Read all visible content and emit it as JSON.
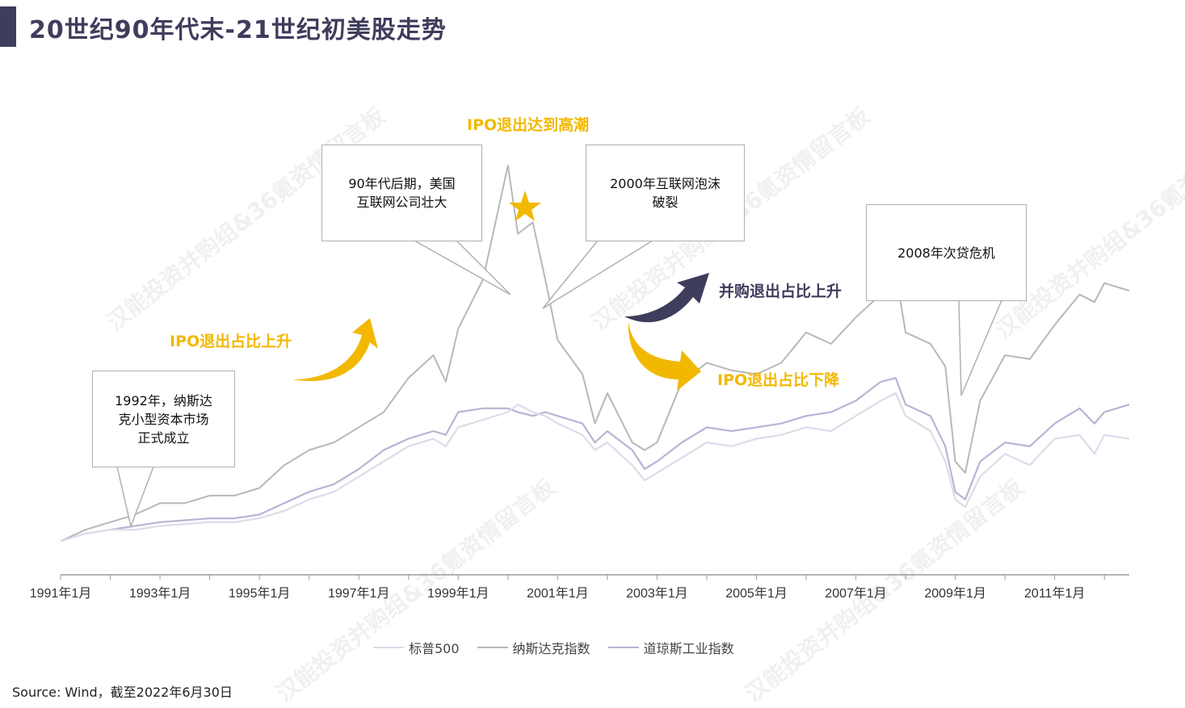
{
  "page": {
    "title": "20世纪90年代末-21世纪初美股走势",
    "source": "Source: Wind，截至2022年6月30日",
    "watermark": "汉能投资并购组&36氪资情留言板"
  },
  "colors": {
    "title_bar": "#3f3d5c",
    "nasdaq": "#b8b8b8",
    "sp500": "#dcdcea",
    "dow": "#b8b4d4",
    "gold": "#f2b800",
    "navy": "#3f3d5c"
  },
  "annotations": {
    "callout_1992": "1992年，纳斯达\n克小型资本市场\n正式成立",
    "callout_90s": "90年代后期，美国\n互联网公司壮大",
    "callout_2000": "2000年互联网泡沫\n破裂",
    "callout_2008": "2008年次贷危机",
    "ipo_peak": "IPO退出达到高潮",
    "ipo_up": "IPO退出占比上升",
    "ma_up": "并购退出占比上升",
    "ipo_down": "IPO退出占比下降"
  },
  "icons": {
    "peak_marker": "star-icon",
    "arrow_up_gold": "curved-arrow-up-icon",
    "arrow_up_navy": "curved-arrow-up-icon",
    "arrow_down_gold": "curved-arrow-down-icon"
  },
  "chart_data": {
    "type": "line",
    "title": "",
    "xlabel": "",
    "ylabel": "",
    "x_tick_labels": [
      "1991年1月",
      "1993年1月",
      "1995年1月",
      "1997年1月",
      "1999年1月",
      "2001年1月",
      "2003年1月",
      "2005年1月",
      "2007年1月",
      "2009年1月",
      "2011年1月"
    ],
    "xlim": [
      1991.0,
      2012.5
    ],
    "y_relative_scale": [
      0,
      100
    ],
    "grid": false,
    "legend_position": "bottom",
    "x": [
      1991.0,
      1991.5,
      1992.0,
      1992.5,
      1993.0,
      1993.5,
      1994.0,
      1994.5,
      1995.0,
      1995.5,
      1996.0,
      1996.5,
      1997.0,
      1997.5,
      1998.0,
      1998.5,
      1998.75,
      1999.0,
      1999.5,
      2000.0,
      2000.2,
      2000.5,
      2000.75,
      2001.0,
      2001.5,
      2001.75,
      2002.0,
      2002.5,
      2002.75,
      2003.0,
      2003.5,
      2004.0,
      2004.5,
      2005.0,
      2005.5,
      2006.0,
      2006.5,
      2007.0,
      2007.5,
      2007.8,
      2008.0,
      2008.5,
      2008.8,
      2009.0,
      2009.2,
      2009.5,
      2010.0,
      2010.5,
      2011.0,
      2011.5,
      2011.8,
      2012.0,
      2012.5
    ],
    "series": [
      {
        "name": "标普500",
        "values": [
          1,
          3,
          4,
          4,
          5,
          5.5,
          6,
          6,
          7,
          9,
          12,
          14,
          18,
          22,
          26,
          28,
          26,
          31,
          33,
          35,
          37,
          35,
          34,
          32,
          29,
          25,
          27,
          21,
          17,
          19,
          23,
          27,
          26,
          28,
          29,
          31,
          30,
          34,
          38,
          40,
          34,
          30,
          22,
          12,
          10,
          18,
          24,
          21,
          28,
          29,
          24,
          29,
          28
        ]
      },
      {
        "name": "纳斯达克指数",
        "values": [
          1,
          4,
          6,
          8,
          11,
          11,
          13,
          13,
          15,
          21,
          25,
          27,
          31,
          35,
          44,
          50,
          43,
          57,
          70,
          100,
          82,
          85,
          70,
          54,
          45,
          32,
          40,
          27,
          25,
          27,
          43,
          48,
          46,
          45,
          48,
          56,
          53,
          60,
          66,
          72,
          56,
          53,
          47,
          22,
          19,
          38,
          50,
          49,
          58,
          66,
          64,
          69,
          67
        ]
      },
      {
        "name": "道琼斯工业指数",
        "values": [
          1,
          3,
          4,
          5,
          6,
          6.5,
          7,
          7,
          8,
          11,
          14,
          16,
          20,
          25,
          28,
          30,
          29,
          35,
          36,
          36,
          35,
          34,
          35,
          34,
          32,
          27,
          30,
          25,
          20,
          22,
          27,
          31,
          30,
          31,
          32,
          34,
          35,
          38,
          43,
          44,
          37,
          34,
          26,
          14,
          12,
          22,
          27,
          26,
          32,
          36,
          32,
          35,
          37
        ]
      }
    ]
  }
}
